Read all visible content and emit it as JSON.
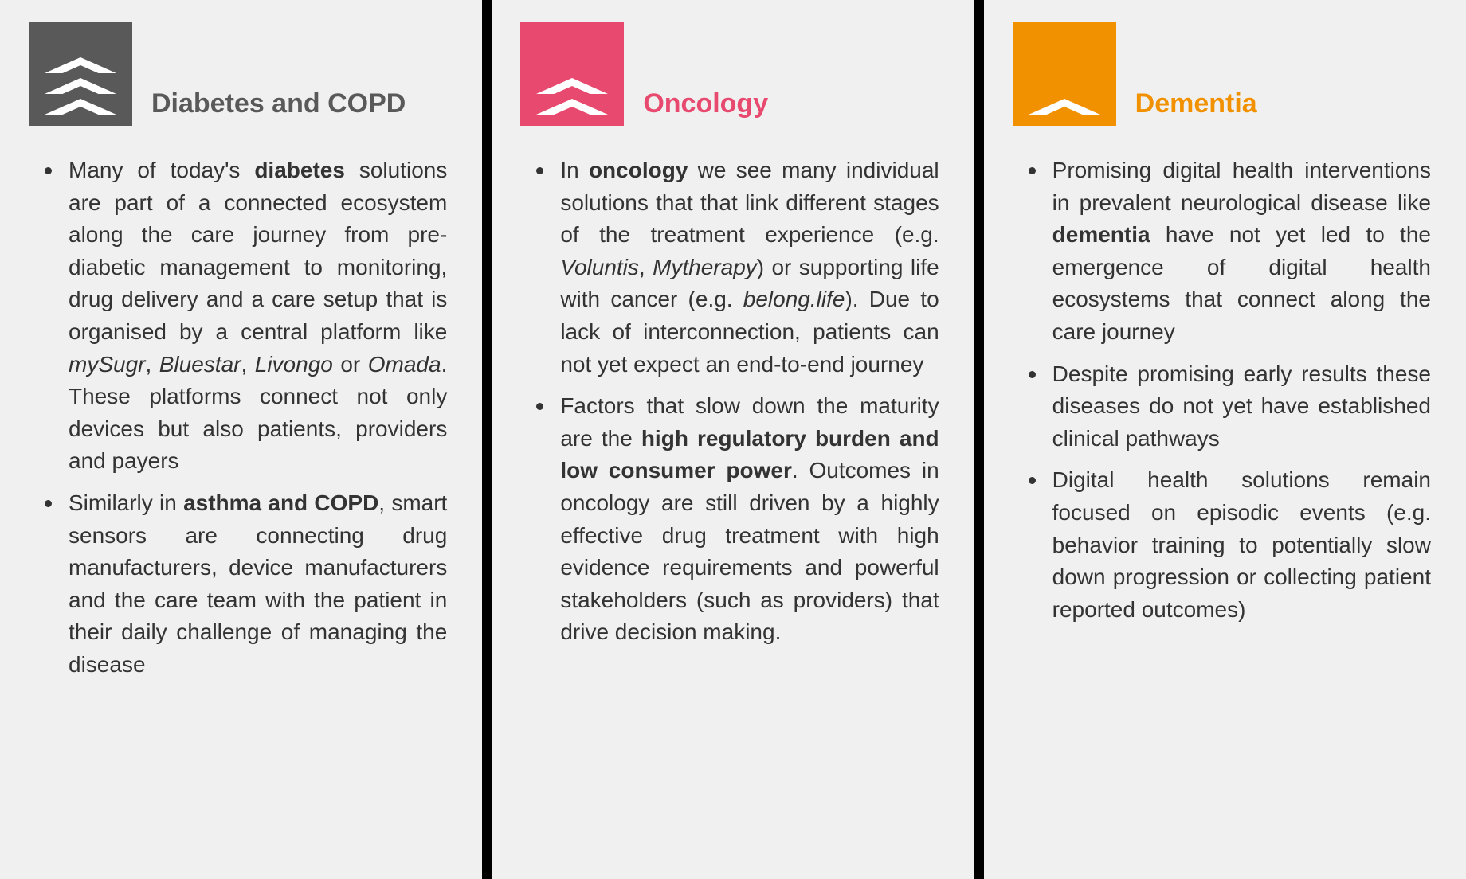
{
  "columns": [
    {
      "title": "Diabetes and COPD",
      "title_color": "#595959",
      "icon_bg": "#595959",
      "chevrons": 3,
      "bullets": [
        "Many of today's <b>diabetes</b> solutions are part of a connected ecosystem along the care journey from pre-diabetic management to monitoring, drug delivery and a care setup that is organised by a central platform like <i>mySugr</i>, <i>Bluestar</i>, <i>Livongo</i> or <i>Omada</i>. These platforms connect not only devices but also patients, providers and payers",
        "Similarly in <b>asthma and COPD</b>, smart sensors are connecting drug manufacturers, device manufacturers and the care team with the patient in their daily challenge of managing the disease"
      ]
    },
    {
      "title": "Oncology",
      "title_color": "#e84a6f",
      "icon_bg": "#e84a6f",
      "chevrons": 2,
      "bullets": [
        "In <b>oncology</b> we see many individual solutions that that link different stages of the treatment experience (e.g. <i>Voluntis</i>, <i>Mytherapy</i>) or supporting life with cancer (e.g. <i>belong.life</i>). Due to lack of interconnection, patients can not yet expect an end-to-end journey",
        "Factors that slow down the maturity are the <b>high regulatory burden and low consumer power</b>. Outcomes in oncology are still driven by a highly effective drug treatment with high evidence requirements and powerful stakeholders (such as providers) that drive decision making."
      ]
    },
    {
      "title": "Dementia",
      "title_color": "#f29100",
      "icon_bg": "#f29100",
      "chevrons": 1,
      "bullets": [
        "Promising digital health interventions in prevalent neurological disease like <b>dementia</b> have not yet led to the emergence of digital health ecosystems that connect along the care journey",
        "Despite promising early results these diseases do not yet have established clinical pathways",
        "Digital health solutions remain focused on episodic events (e.g. behavior training to potentially slow down progression or collecting patient reported outcomes)"
      ]
    }
  ]
}
